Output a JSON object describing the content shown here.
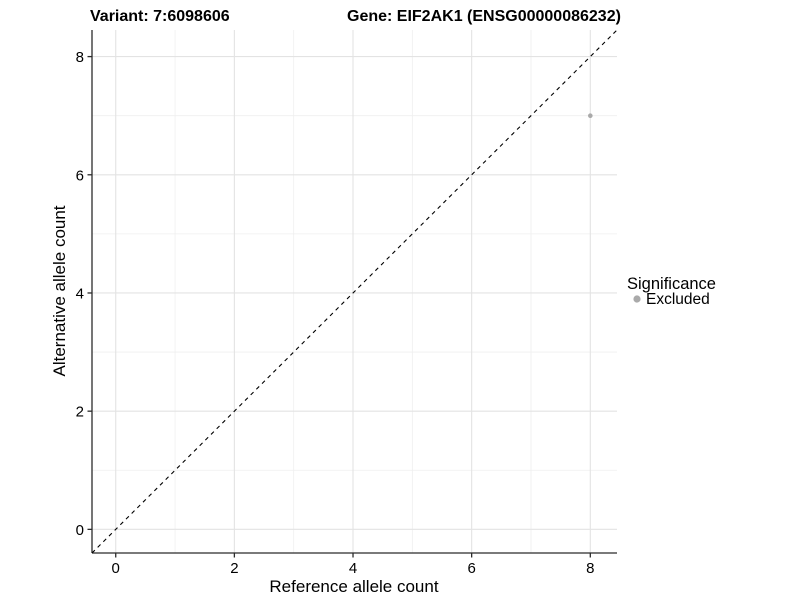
{
  "figure": {
    "background": "#ffffff",
    "title_left": "Variant: 7:6098606",
    "title_right": "Gene: EIF2AK1 (ENSG00000086232)"
  },
  "chart_data": {
    "type": "scatter",
    "title": "Variant: 7:6098606   Gene: EIF2AK1 (ENSG00000086232)",
    "xlabel": "Reference allele count",
    "ylabel": "Alternative allele count",
    "xlim": [
      -0.4,
      8.45
    ],
    "ylim": [
      -0.4,
      8.45
    ],
    "x_ticks": [
      0,
      2,
      4,
      6,
      8
    ],
    "y_ticks": [
      0,
      2,
      4,
      6,
      8
    ],
    "x_minor_gridlines": [
      1,
      3,
      5,
      7
    ],
    "y_minor_gridlines": [
      1,
      3,
      5,
      7
    ],
    "grid": true,
    "identity_line": {
      "from": [
        -0.4,
        -0.4
      ],
      "to": [
        8.45,
        8.45
      ],
      "style": "dashed",
      "color": "#000000"
    },
    "series": [
      {
        "name": "Excluded",
        "color": "#aaaaaa",
        "points": [
          {
            "x": 8,
            "y": 7
          }
        ]
      }
    ],
    "legend": {
      "title": "Significance",
      "position": "right",
      "entries": [
        {
          "label": "Excluded",
          "color": "#aaaaaa"
        }
      ]
    }
  },
  "style": {
    "axis_line_color": "#2b2b2b",
    "tick_color": "#2b2b2b",
    "major_grid_color": "#e3e3e3",
    "minor_grid_color": "#efefef",
    "point_radius": 2.3,
    "legend_dot_radius": 3.6
  }
}
